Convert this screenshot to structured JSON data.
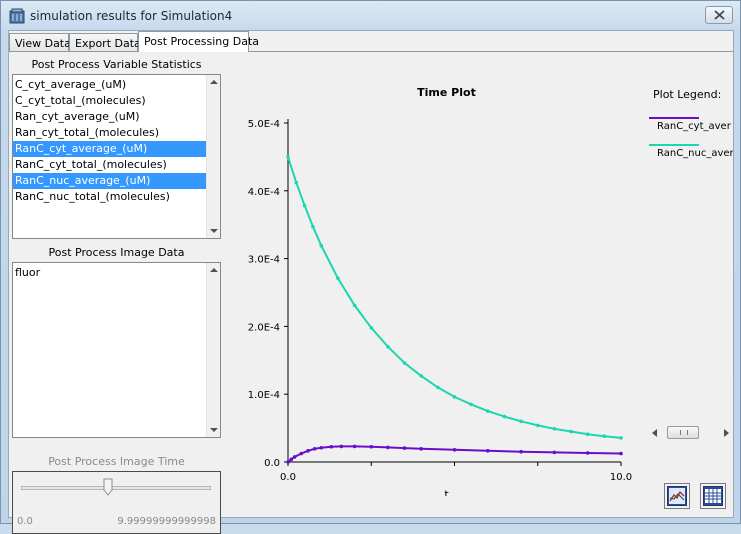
{
  "window": {
    "title": "simulation results for Simulation4"
  },
  "tabs": [
    {
      "label": "View Data",
      "active": false
    },
    {
      "label": "Export Data",
      "active": false
    },
    {
      "label": "Post Processing Data",
      "active": true
    }
  ],
  "variables": {
    "label": "Post Process Variable Statistics",
    "items": [
      {
        "label": "C_cyt_average_(uM)",
        "selected": false
      },
      {
        "label": "C_cyt_total_(molecules)",
        "selected": false
      },
      {
        "label": "Ran_cyt_average_(uM)",
        "selected": false
      },
      {
        "label": "Ran_cyt_total_(molecules)",
        "selected": false
      },
      {
        "label": "RanC_cyt_average_(uM)",
        "selected": true
      },
      {
        "label": "RanC_cyt_total_(molecules)",
        "selected": false
      },
      {
        "label": "RanC_nuc_average_(uM)",
        "selected": true
      },
      {
        "label": "RanC_nuc_total_(molecules)",
        "selected": false
      }
    ]
  },
  "image_data": {
    "label": "Post Process Image Data",
    "items": [
      "fluor"
    ]
  },
  "image_time": {
    "label": "Post Process Image Time",
    "min_label": "0.0",
    "max_label": "9.99999999999998",
    "value_fraction": 0.46
  },
  "legend": {
    "title": "Plot Legend:",
    "entries": [
      {
        "label": "RanC_cyt_aver",
        "color": "#6a0dc9"
      },
      {
        "label": "RanC_nuc_aver",
        "color": "#1bd6b0"
      }
    ]
  },
  "toolbar": {
    "plot_icon": "line-plot-icon",
    "table_icon": "data-table-icon"
  },
  "chart_data": {
    "type": "line",
    "title": "Time Plot",
    "xlabel": "t",
    "ylabel": "",
    "xlim": [
      0.0,
      10.0
    ],
    "ylim": [
      0.0,
      0.0005
    ],
    "x_tick_labels": [
      "0.0",
      "10.0"
    ],
    "y_tick_labels": [
      "0.0",
      "1.0E-4",
      "2.0E-4",
      "3.0E-4",
      "4.0E-4",
      "5.0E-4"
    ],
    "y_ticks": [
      0.0,
      0.0001,
      0.0002,
      0.0003,
      0.0004,
      0.0005
    ],
    "x_ticks": [
      0.0,
      2.5,
      5.0,
      7.5,
      10.0
    ],
    "series": [
      {
        "name": "RanC_cyt_aver",
        "color": "#6a0dc9",
        "x": [
          0.0,
          0.1,
          0.2,
          0.4,
          0.6,
          0.8,
          1.0,
          1.3,
          1.6,
          2.0,
          2.5,
          3.0,
          3.5,
          4.0,
          5.0,
          6.0,
          7.0,
          8.0,
          9.0,
          10.0
        ],
        "y": [
          0.0,
          4e-06,
          7.5e-06,
          1.25e-05,
          1.65e-05,
          1.95e-05,
          2.1e-05,
          2.25e-05,
          2.3e-05,
          2.3e-05,
          2.25e-05,
          2.15e-05,
          2.05e-05,
          1.95e-05,
          1.8e-05,
          1.65e-05,
          1.52e-05,
          1.42e-05,
          1.33e-05,
          1.25e-05
        ]
      },
      {
        "name": "RanC_nuc_aver",
        "color": "#1bd6b0",
        "x": [
          0.0,
          0.25,
          0.5,
          0.75,
          1.0,
          1.5,
          2.0,
          2.5,
          3.0,
          3.5,
          4.0,
          4.5,
          5.0,
          5.5,
          6.0,
          6.5,
          7.0,
          7.5,
          8.0,
          8.5,
          9.0,
          9.5,
          10.0
        ],
        "y": [
          0.00045,
          0.000412,
          0.000378,
          0.000347,
          0.000319,
          0.000271,
          0.000231,
          0.000198,
          0.00017,
          0.000146,
          0.000127,
          0.00011,
          9.6e-05,
          8.5e-05,
          7.5e-05,
          6.7e-05,
          6e-05,
          5.4e-05,
          4.9e-05,
          4.5e-05,
          4.1e-05,
          3.8e-05,
          3.55e-05
        ]
      }
    ],
    "legend": "right",
    "grid": false
  }
}
